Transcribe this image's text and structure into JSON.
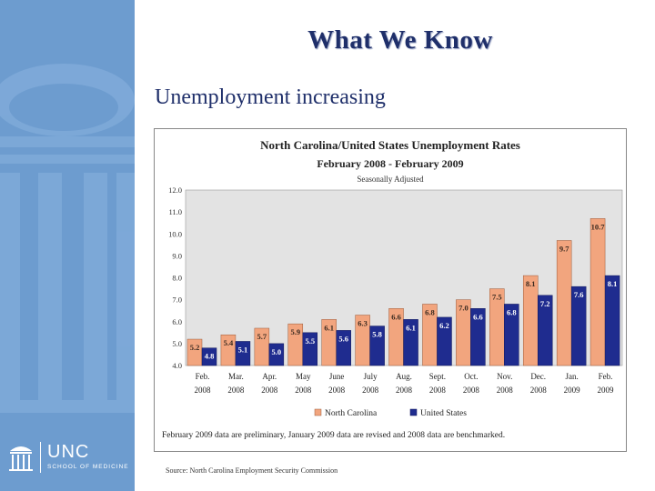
{
  "slide": {
    "title": "What We Know",
    "subtitle": "Unemployment increasing",
    "source": "Source: North Carolina Employment Security Commission"
  },
  "logo": {
    "name": "UNC",
    "school": "SCHOOL OF MEDICINE"
  },
  "colors": {
    "sidebar": "#6d9ccf",
    "title": "#1f2f6a",
    "nc_bar": "#f2a57e",
    "us_bar": "#1f2c8f"
  },
  "chart_data": {
    "type": "bar",
    "title": "North Carolina/United States Unemployment Rates",
    "subtitle": "February 2008 - February 2009",
    "note": "Seasonally Adjusted",
    "footnote": "February 2009 data are preliminary, January 2009 data are revised and 2008 data are benchmarked.",
    "categories": [
      [
        "Feb.",
        "2008"
      ],
      [
        "Mar.",
        "2008"
      ],
      [
        "Apr.",
        "2008"
      ],
      [
        "May",
        "2008"
      ],
      [
        "June",
        "2008"
      ],
      [
        "July",
        "2008"
      ],
      [
        "Aug.",
        "2008"
      ],
      [
        "Sept.",
        "2008"
      ],
      [
        "Oct.",
        "2008"
      ],
      [
        "Nov.",
        "2008"
      ],
      [
        "Dec.",
        "2008"
      ],
      [
        "Jan.",
        "2009"
      ],
      [
        "Feb.",
        "2009"
      ]
    ],
    "series": [
      {
        "name": "North Carolina",
        "color": "#f2a57e",
        "values": [
          5.2,
          5.4,
          5.7,
          5.9,
          6.1,
          6.3,
          6.6,
          6.8,
          7.0,
          7.5,
          8.1,
          9.7,
          10.7
        ]
      },
      {
        "name": "United States",
        "color": "#1f2c8f",
        "values": [
          4.8,
          5.1,
          5.0,
          5.5,
          5.6,
          5.8,
          6.1,
          6.2,
          6.6,
          6.8,
          7.2,
          7.6,
          8.1
        ]
      }
    ],
    "data_labels": {
      "North Carolina": [
        "5.2",
        "5.4",
        "5.7",
        "5.9",
        "6.1",
        "6.3",
        "6.6",
        "6.8",
        "7.0",
        "7.5",
        "8.1",
        "9.7",
        "10.7"
      ],
      "United States": [
        "4.8",
        "5.1",
        "5.0",
        "5.5",
        "5.6",
        "5.8",
        "6.1",
        "6.2",
        "6.6",
        "6.8",
        "7.2",
        "7.6",
        "8.1"
      ]
    },
    "yticks": [
      "4.0",
      "5.0",
      "6.0",
      "7.0",
      "8.0",
      "9.0",
      "10.0",
      "11.0",
      "12.0"
    ],
    "ylim": [
      4,
      12
    ],
    "grid": false,
    "legend": "bottom"
  }
}
